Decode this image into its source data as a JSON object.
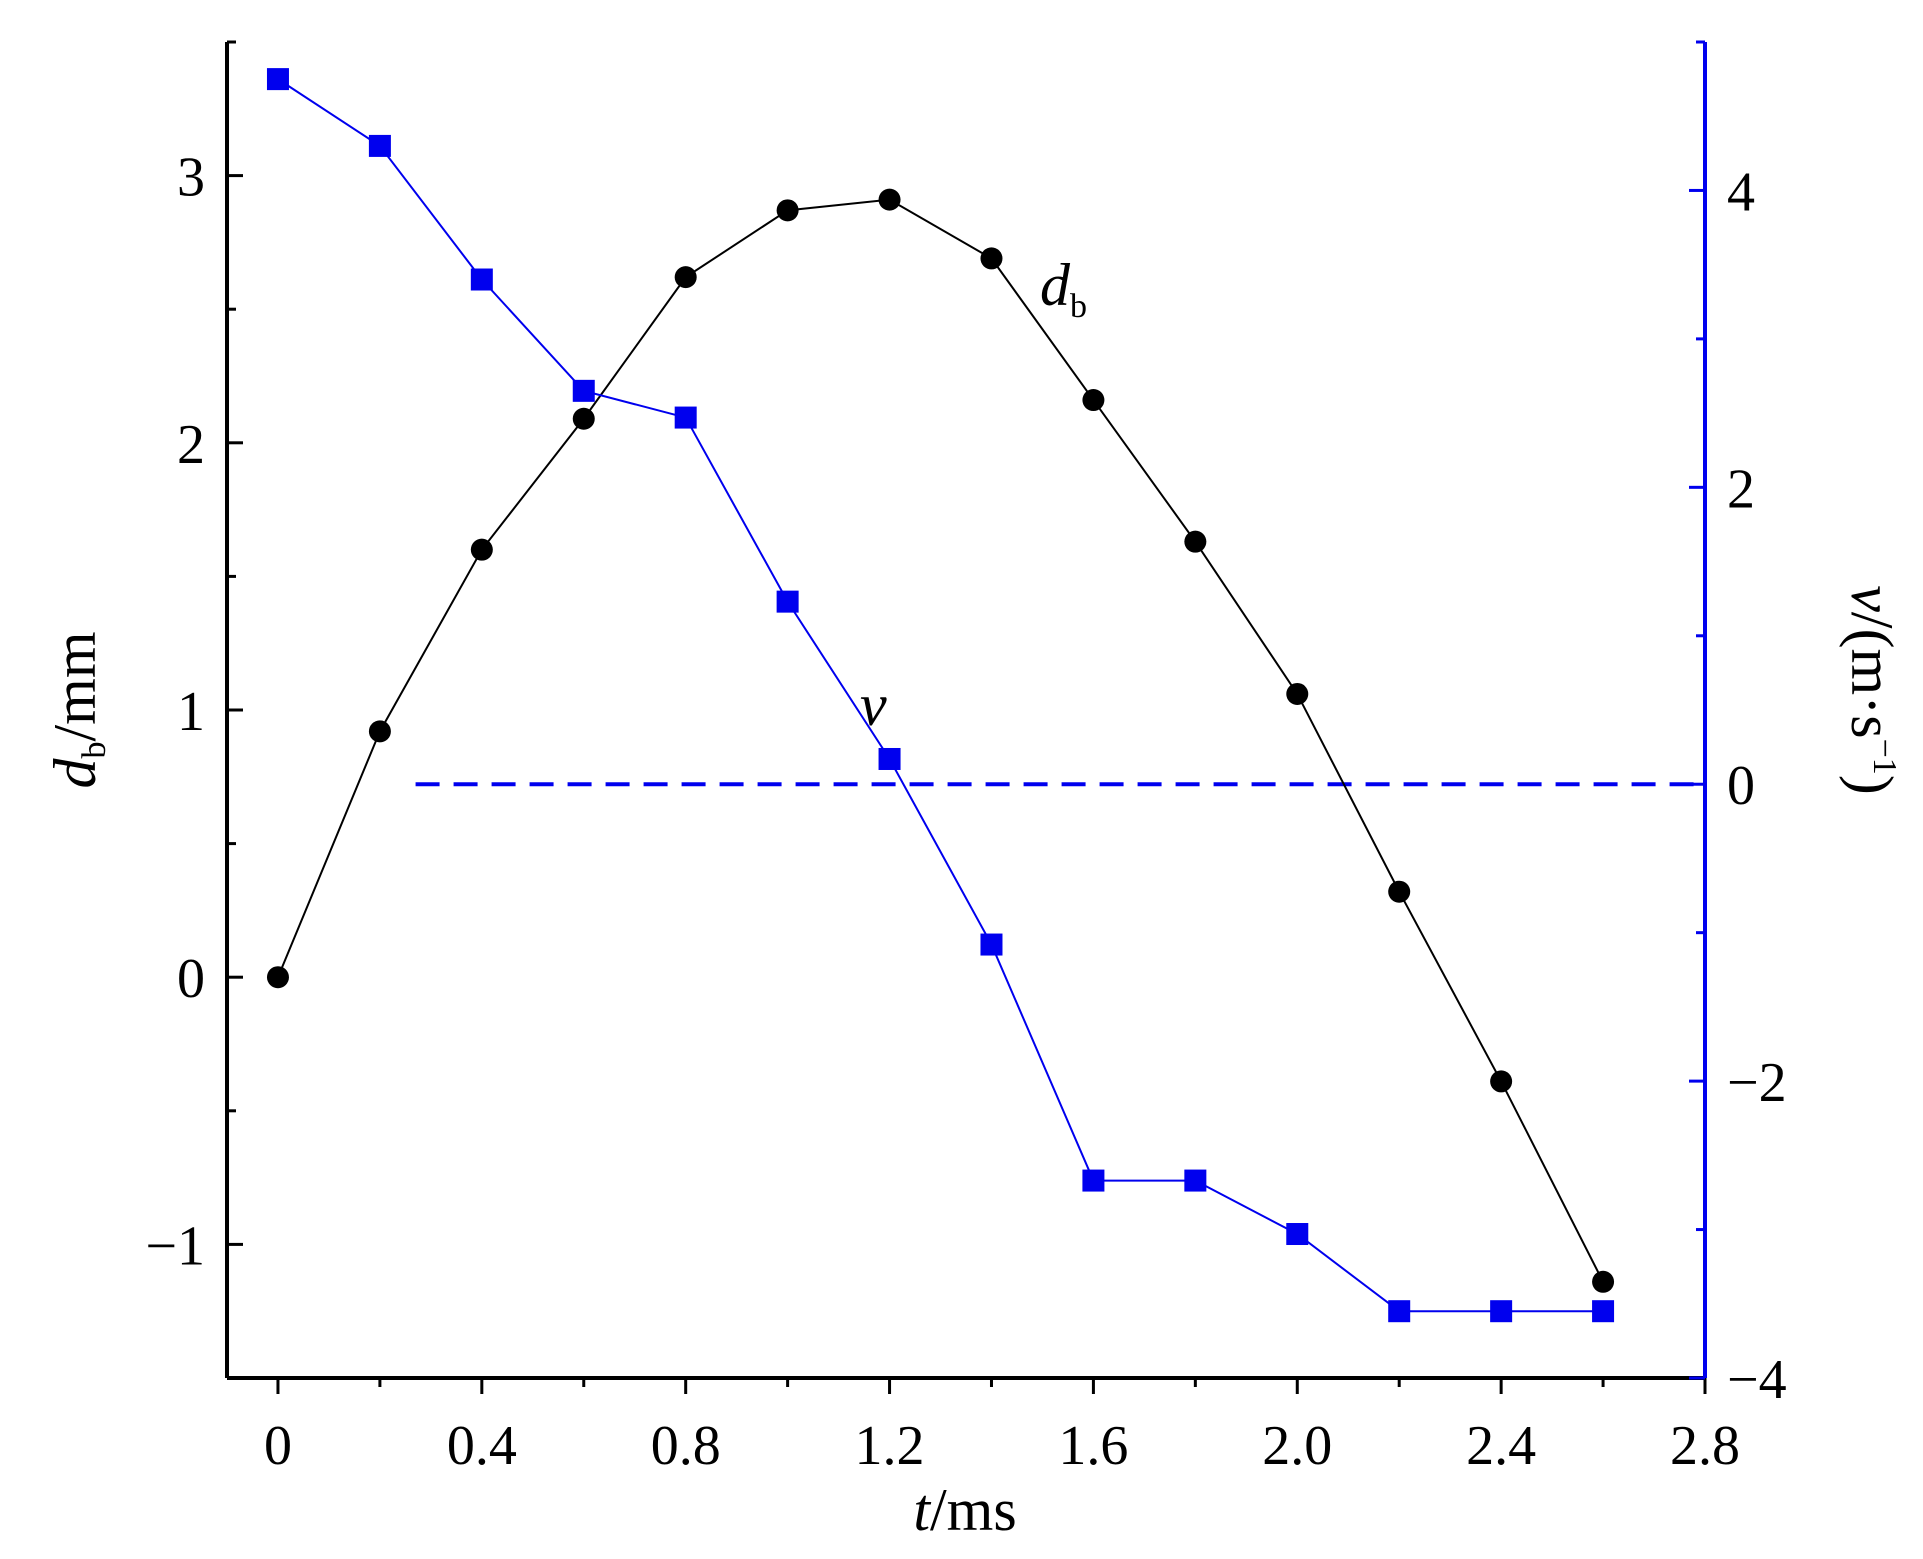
{
  "chart_data": {
    "type": "line",
    "x_axis": {
      "label_var": "t",
      "label_unit": "/ms",
      "range": [
        -0.1,
        2.8
      ],
      "ticks": [
        0,
        0.4,
        0.8,
        1.2,
        1.6,
        2.0,
        2.4,
        2.8
      ],
      "tick_labels": [
        "0",
        "0.4",
        "0.8",
        "1.2",
        "1.6",
        "2.0",
        "2.4",
        "2.8"
      ]
    },
    "y_left": {
      "label_var": "d",
      "label_sub": "b",
      "label_unit": "/mm",
      "range": [
        -1.5,
        3.5
      ],
      "ticks": [
        -1,
        0,
        1,
        2,
        3
      ],
      "tick_labels": [
        "−1",
        "0",
        "1",
        "2",
        "3"
      ],
      "minor_ticks": [
        -1.5,
        -0.5,
        0.5,
        1.5,
        2.5,
        3.5
      ]
    },
    "y_right": {
      "label_var": "v",
      "label_unit": "/(m·s",
      "label_sup": "−1",
      "label_close": ")",
      "range": [
        -4,
        5
      ],
      "ticks": [
        -4,
        -2,
        0,
        2,
        4
      ],
      "tick_labels": [
        "−4",
        "−2",
        "0",
        "2",
        "4"
      ],
      "minor_ticks": [
        -3,
        -1,
        1,
        3,
        5
      ],
      "color": "#0000ee"
    },
    "reference_line": {
      "axis": "y_right",
      "value": 0,
      "x_start": 0.27,
      "style": "dashed",
      "color": "#0000ee"
    },
    "series": [
      {
        "axis": "y_left",
        "marker": "circle",
        "color": "#000000",
        "label_var": "d",
        "label_sub": "b",
        "x": [
          0,
          0.2,
          0.4,
          0.6,
          0.8,
          1.0,
          1.2,
          1.4,
          1.6,
          1.8,
          2.0,
          2.2,
          2.4,
          2.6
        ],
        "values": [
          0,
          0.92,
          1.6,
          2.09,
          2.62,
          2.87,
          2.91,
          2.69,
          2.16,
          1.63,
          1.06,
          0.32,
          -0.39,
          -1.14
        ]
      },
      {
        "axis": "y_right",
        "marker": "square",
        "color": "#0000ee",
        "label_var": "v",
        "x": [
          0,
          0.2,
          0.4,
          0.6,
          0.8,
          1.0,
          1.2,
          1.4,
          1.6,
          1.8,
          2.0,
          2.2,
          2.4,
          2.6
        ],
        "values": [
          4.75,
          4.3,
          3.4,
          2.65,
          2.47,
          1.23,
          0.17,
          -1.08,
          -2.67,
          -2.67,
          -3.03,
          -3.55,
          -3.55,
          -3.55
        ]
      }
    ]
  }
}
